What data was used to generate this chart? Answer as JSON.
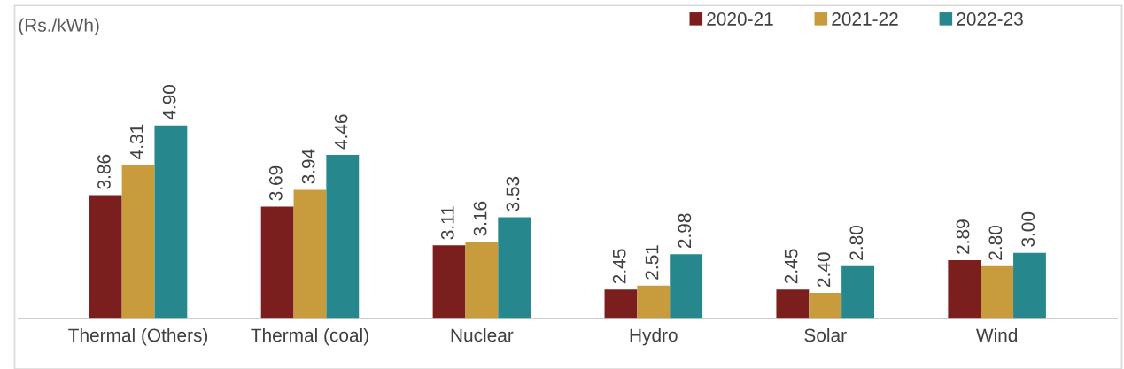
{
  "chart_data": {
    "type": "bar",
    "ylabel": "(Rs./kWh)",
    "categories": [
      "Thermal (Others)",
      "Thermal (coal)",
      "Nuclear",
      "Hydro",
      "Solar",
      "Wind"
    ],
    "series": [
      {
        "name": "2020-21",
        "color": "#7b1e1e",
        "values": [
          3.86,
          3.69,
          3.11,
          2.45,
          2.45,
          2.89
        ],
        "value_labels": [
          "3.86",
          "3.69",
          "3.11",
          "2.45",
          "2.45",
          "2.89"
        ]
      },
      {
        "name": "2021-22",
        "color": "#c89b3c",
        "values": [
          4.31,
          3.94,
          3.16,
          2.51,
          2.4,
          2.8
        ],
        "value_labels": [
          "4.31",
          "3.94",
          "3.16",
          "2.51",
          "2.40",
          "2.80"
        ]
      },
      {
        "name": "2022-23",
        "color": "#26878c",
        "values": [
          4.9,
          4.46,
          3.53,
          2.98,
          2.8,
          3.0
        ],
        "value_labels": [
          "4.90",
          "4.46",
          "3.53",
          "2.98",
          "2.80",
          "3.00"
        ]
      }
    ],
    "ylim": [
      2.02,
      6.7
    ],
    "tick_labels": "x",
    "grid": false,
    "legend": "top right"
  }
}
